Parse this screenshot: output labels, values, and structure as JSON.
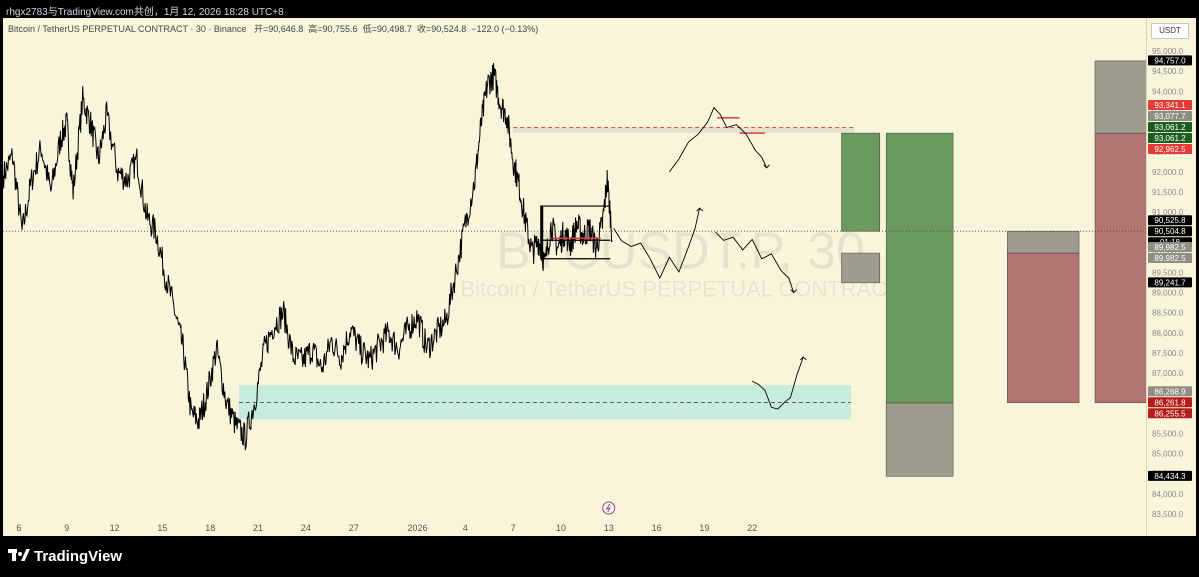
{
  "header": {
    "title": "rhgx2783与TradingView.com共创，1月 12, 2026 18:28 UTC+8"
  },
  "legend": {
    "symbol": "Bitcoin / TetherUS PERPETUAL CONTRACT · 30 · Binance",
    "open_label": "开=",
    "open": "90,646.8",
    "high_label": "高=",
    "high": "90,755.6",
    "low_label": "低=",
    "low": "90,498.7",
    "close_label": "收=",
    "close": "90,524.8",
    "change": "−122.0 (−0.13%)"
  },
  "watermark": {
    "ticker": "BTCUSDT.P, 30",
    "name": "Bitcoin / TetherUS PERPETUAL CONTRACT"
  },
  "currency_button": "USDT",
  "footer": {
    "brand": "TradingView"
  },
  "colors": {
    "background": "#f8f5db",
    "candles": "#000000",
    "green_zone": "#6b9a5e",
    "red_zone": "#b27571",
    "grey_zone": "#9e9c8c",
    "teal_zone": "#c7ecdd",
    "red_level": "#e03c3c"
  },
  "chart_data": {
    "type": "candlestick",
    "y_range": [
      83300,
      96200
    ],
    "y_ticks": [
      "95,000.0",
      "94,500.0",
      "94,000.0",
      "93,500.0",
      "93,000.0",
      "92,500.0",
      "92,000.0",
      "91,500.0",
      "91,000.0",
      "90,500.0",
      "90,000.0",
      "89,500.0",
      "89,000.0",
      "88,500.0",
      "88,000.0",
      "87,500.0",
      "87,000.0",
      "86,500.0",
      "86,000.0",
      "85,500.0",
      "85,000.0",
      "84,500.0",
      "84,000.0",
      "83,500.0"
    ],
    "x_ticks": [
      "6",
      "9",
      "12",
      "15",
      "18",
      "21",
      "24",
      "27",
      "2026",
      "4",
      "7",
      "10",
      "13",
      "16",
      "19",
      "22"
    ],
    "x_tick_days": [
      6,
      9,
      12,
      15,
      18,
      21,
      24,
      27,
      31,
      34,
      37,
      40,
      43,
      46,
      49,
      52
    ],
    "x_range_days": [
      5.0,
      76.7
    ],
    "price_series": [
      [
        5.0,
        91900
      ],
      [
        5.6,
        92400
      ],
      [
        6.2,
        90500
      ],
      [
        6.8,
        91800
      ],
      [
        7.4,
        92600
      ],
      [
        8.0,
        91500
      ],
      [
        8.6,
        92800
      ],
      [
        9.0,
        93200
      ],
      [
        9.4,
        91500
      ],
      [
        10.0,
        93800
      ],
      [
        10.5,
        93200
      ],
      [
        11.0,
        92300
      ],
      [
        11.5,
        93400
      ],
      [
        12.2,
        92000
      ],
      [
        12.8,
        91800
      ],
      [
        13.4,
        92300
      ],
      [
        14.0,
        90900
      ],
      [
        14.6,
        90500
      ],
      [
        15.2,
        89400
      ],
      [
        15.8,
        88500
      ],
      [
        16.3,
        87600
      ],
      [
        16.8,
        86000
      ],
      [
        17.3,
        85800
      ],
      [
        17.8,
        86500
      ],
      [
        18.4,
        87600
      ],
      [
        19.0,
        86300
      ],
      [
        19.6,
        85700
      ],
      [
        20.2,
        85400
      ],
      [
        20.8,
        86300
      ],
      [
        21.4,
        87600
      ],
      [
        22.0,
        88200
      ],
      [
        22.6,
        88500
      ],
      [
        23.2,
        87400
      ],
      [
        23.8,
        87300
      ],
      [
        24.4,
        87600
      ],
      [
        25.0,
        87100
      ],
      [
        25.6,
        87800
      ],
      [
        26.2,
        87400
      ],
      [
        26.8,
        88100
      ],
      [
        27.4,
        87600
      ],
      [
        28.0,
        87300
      ],
      [
        28.6,
        87700
      ],
      [
        29.2,
        88000
      ],
      [
        29.8,
        87600
      ],
      [
        30.4,
        88100
      ],
      [
        31.0,
        88400
      ],
      [
        31.6,
        87600
      ],
      [
        32.2,
        88000
      ],
      [
        32.8,
        88300
      ],
      [
        33.4,
        89500
      ],
      [
        34.0,
        90700
      ],
      [
        34.6,
        91800
      ],
      [
        35.0,
        93200
      ],
      [
        35.4,
        94200
      ],
      [
        35.8,
        94400
      ],
      [
        36.2,
        93700
      ],
      [
        36.6,
        93400
      ],
      [
        37.0,
        92300
      ],
      [
        37.4,
        91600
      ],
      [
        37.8,
        90700
      ],
      [
        38.2,
        90000
      ],
      [
        38.6,
        90300
      ],
      [
        39.0,
        89700
      ],
      [
        39.4,
        90700
      ],
      [
        39.8,
        90100
      ],
      [
        40.2,
        90500
      ],
      [
        40.6,
        90200
      ],
      [
        41.0,
        90700
      ],
      [
        41.4,
        90400
      ],
      [
        41.8,
        90600
      ],
      [
        42.2,
        90100
      ],
      [
        42.6,
        90700
      ],
      [
        42.9,
        91800
      ],
      [
        43.2,
        90500
      ]
    ],
    "projected_paths": [
      {
        "name": "",
        "points": [
          [
            43.3,
            90600
          ],
          [
            43.8,
            90300
          ],
          [
            44.4,
            90000
          ],
          [
            45.0,
            90200
          ],
          [
            45.6,
            89800
          ],
          [
            46.2,
            89500
          ],
          [
            46.8,
            89900
          ],
          [
            47.4,
            89600
          ],
          [
            48.0,
            90000
          ],
          [
            48.4,
            90700
          ],
          [
            48.7,
            91100
          ]
        ],
        "arrow": "up"
      },
      {
        "name": "",
        "points": [
          [
            46.8,
            92000
          ],
          [
            47.4,
            92400
          ],
          [
            48.0,
            92700
          ],
          [
            48.6,
            93000
          ],
          [
            49.2,
            93100
          ],
          [
            49.6,
            93700
          ],
          [
            50.0,
            93500
          ],
          [
            50.4,
            93000
          ],
          [
            51.0,
            93200
          ],
          [
            51.6,
            92800
          ],
          [
            52.2,
            92600
          ],
          [
            52.6,
            92500
          ],
          [
            52.9,
            92100
          ]
        ],
        "arrow": "down"
      },
      {
        "name": "",
        "points": [
          [
            49.7,
            90500
          ],
          [
            50.2,
            90200
          ],
          [
            50.8,
            90400
          ],
          [
            51.4,
            90100
          ],
          [
            52.0,
            90200
          ],
          [
            52.6,
            89800
          ],
          [
            53.2,
            89900
          ],
          [
            53.8,
            89500
          ],
          [
            54.3,
            89400
          ],
          [
            54.6,
            89000
          ]
        ],
        "arrow": "down"
      },
      {
        "name": "",
        "points": [
          [
            52.0,
            86800
          ],
          [
            52.4,
            86600
          ],
          [
            52.8,
            86500
          ],
          [
            53.2,
            86300
          ],
          [
            53.6,
            86100
          ],
          [
            54.0,
            86400
          ],
          [
            54.4,
            86400
          ],
          [
            54.8,
            87000
          ],
          [
            55.2,
            87400
          ]
        ],
        "arrow": "up"
      }
    ],
    "consolidation_box": {
      "x_days": [
        38.7,
        43.1
      ],
      "y": [
        89840,
        91150
      ],
      "mid": 90300
    },
    "red_levels": [
      {
        "x_days": [
          49.8,
          51.2
        ],
        "y": 93341.1
      },
      {
        "x_days": [
          51.2,
          52.8
        ],
        "y": 92962.5
      },
      {
        "x_days": [
          39.5,
          42.5
        ],
        "y": 90350
      }
    ],
    "zones": [
      {
        "kind": "grey",
        "x_days": [
          37.0,
          58.4
        ],
        "y": [
          92970,
          93100
        ]
      },
      {
        "kind": "teal",
        "x_days": [
          19.8,
          58.2
        ],
        "y": [
          85850,
          86700
        ],
        "mid": 86268.9
      }
    ],
    "positions": [
      {
        "x_days": [
          57.6,
          60.0
        ],
        "profit": [
          90525.8,
          92962.5
        ],
        "loss": [
          89241.7,
          89982.5
        ],
        "entry": 89982.5,
        "side": "long"
      },
      {
        "x_days": [
          60.4,
          64.6
        ],
        "profit": [
          86255.5,
          92962.5
        ],
        "loss": [
          84434.3,
          86255.5
        ],
        "entry": 86255.5,
        "side": "long"
      },
      {
        "x_days": [
          68.0,
          72.5
        ],
        "loss": [
          89982.5,
          90525.8
        ],
        "profit": [
          86261.8,
          89982.5
        ],
        "entry": 89982.5,
        "side": "short"
      },
      {
        "x_days": [
          73.5,
          79.5
        ],
        "loss": [
          92962.5,
          94757.0
        ],
        "profit": [
          86261.8,
          92962.5
        ],
        "entry": 92962.5,
        "side": "short"
      }
    ],
    "current_price": 90525.8,
    "price_labels": [
      {
        "text": "94,757.0",
        "value": 94757.0,
        "color": "#000000"
      },
      {
        "text": "93,341.1",
        "value": 93341.1,
        "color": "#e53935"
      },
      {
        "text": "93,077.7",
        "value": 93077.7,
        "color": "#8f8e83"
      },
      {
        "text": "93,061.2",
        "value": 93061.2,
        "color": "#1b5e20"
      },
      {
        "text": "93,061.2",
        "value": 93061.2,
        "color": "#1b5e20"
      },
      {
        "text": "92,962.5",
        "value": 92962.5,
        "color": "#e53935"
      },
      {
        "text": "90,525.8",
        "value": 90525.8,
        "color": "#000000"
      },
      {
        "text": "90,504.8",
        "value": 90504.8,
        "color": "#000000"
      },
      {
        "text": "01:18",
        "value": 90504.8,
        "color": "#000000"
      },
      {
        "text": "89,982.5",
        "value": 89982.5,
        "color": "#8f8e83"
      },
      {
        "text": "89,982.5",
        "value": 89982.5,
        "color": "#8f8e83"
      },
      {
        "text": "89,241.7",
        "value": 89241.7,
        "color": "#000000"
      },
      {
        "text": "86,268.9",
        "value": 86268.9,
        "color": "#8f8e83"
      },
      {
        "text": "86,261.8",
        "value": 86261.8,
        "color": "#b71c1c"
      },
      {
        "text": "86,255.5",
        "value": 86255.5,
        "color": "#b71c1c"
      },
      {
        "text": "84,434.3",
        "value": 84434.3,
        "color": "#000000"
      }
    ]
  }
}
